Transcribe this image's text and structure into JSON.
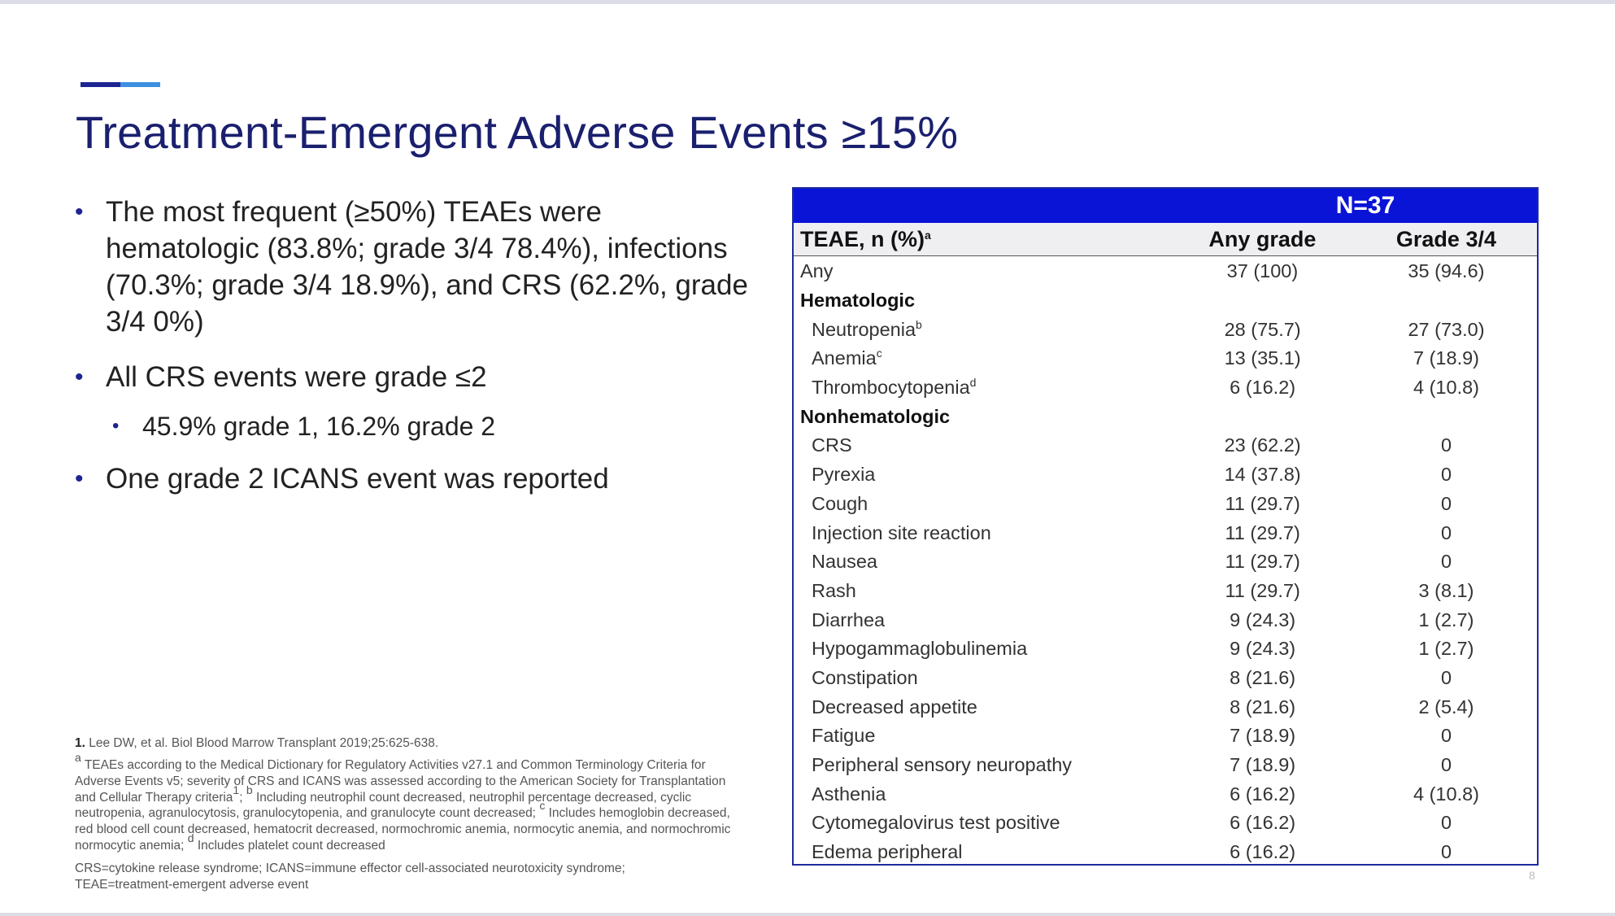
{
  "slide": {
    "title": "Treatment-Emergent Adverse Events ≥15%",
    "page_number": "8",
    "accent_colors": [
      "#1c2591",
      "#3d8fe0"
    ]
  },
  "bullets": {
    "b1": "The most frequent (≥50%) TEAEs were hematologic (83.8%; grade 3/4 78.4%), infections (70.3%; grade 3/4 18.9%), and CRS (62.2%, grade 3/4 0%)",
    "b2": "All CRS events were grade ≤2",
    "b2_sub": "45.9% grade 1, 16.2% grade 2",
    "b3": "One grade 2 ICANS event was reported"
  },
  "footnotes": {
    "ref_number": "1.",
    "ref_text": "Lee DW, et al. Biol Blood Marrow Transplant 2019;25:625-638.",
    "note_a_marker": "a",
    "note_a": "TEAEs according to the Medical Dictionary for Regulatory Activities v27.1 and Common Terminology Criteria for Adverse Events v5; severity of CRS and ICANS was assessed according to the American Society for Transplantation and Cellular Therapy criteria",
    "note_a_ref": "1",
    "note_b_marker": "b",
    "note_b": "Including neutrophil count decreased, neutrophil percentage decreased, cyclic neutropenia, agranulocytosis, granulocytopenia, and granulocyte count decreased;",
    "note_c_marker": "c",
    "note_c": "Includes hemoglobin decreased, red blood cell count decreased, hematocrit decreased, normochromic anemia, normocytic anemia, and normochromic normocytic anemia;",
    "note_d_marker": "d",
    "note_d": "Includes platelet count decreased",
    "abbreviations": "CRS=cytokine release syndrome; ICANS=immune effector cell-associated neurotoxicity syndrome; TEAE=treatment-emergent adverse event"
  },
  "table": {
    "n_label": "N=37",
    "header": {
      "name": "TEAE, n (%)",
      "name_sup": "a",
      "any": "Any grade",
      "g34": "Grade 3/4"
    },
    "rows": [
      {
        "name": "Any",
        "any": "37 (100)",
        "g34": "35 (94.6)"
      },
      {
        "name": "Hematologic"
      },
      {
        "name": "Neutropenia",
        "sup": "b",
        "any": "28 (75.7)",
        "g34": "27 (73.0)"
      },
      {
        "name": "Anemia",
        "sup": "c",
        "any": "13 (35.1)",
        "g34": "7 (18.9)"
      },
      {
        "name": "Thrombocytopenia",
        "sup": "d",
        "any": "6 (16.2)",
        "g34": "4 (10.8)"
      },
      {
        "name": "Nonhematologic"
      },
      {
        "name": "CRS",
        "any": "23 (62.2)",
        "g34": "0"
      },
      {
        "name": "Pyrexia",
        "any": "14 (37.8)",
        "g34": "0"
      },
      {
        "name": "Cough",
        "any": "11 (29.7)",
        "g34": "0"
      },
      {
        "name": "Injection site reaction",
        "any": "11 (29.7)",
        "g34": "0"
      },
      {
        "name": "Nausea",
        "any": "11 (29.7)",
        "g34": "0"
      },
      {
        "name": "Rash",
        "any": "11 (29.7)",
        "g34": "3 (8.1)"
      },
      {
        "name": "Diarrhea",
        "any": "9 (24.3)",
        "g34": "1 (2.7)"
      },
      {
        "name": "Hypogammaglobulinemia",
        "any": "9 (24.3)",
        "g34": "1 (2.7)"
      },
      {
        "name": "Constipation",
        "any": "8 (21.6)",
        "g34": "0"
      },
      {
        "name": "Decreased appetite",
        "any": "8 (21.6)",
        "g34": "2 (5.4)"
      },
      {
        "name": "Fatigue",
        "any": "7 (18.9)",
        "g34": "0"
      },
      {
        "name": "Peripheral sensory neuropathy",
        "any": "7 (18.9)",
        "g34": "0"
      },
      {
        "name": "Asthenia",
        "any": "6 (16.2)",
        "g34": "4 (10.8)"
      },
      {
        "name": "Cytomegalovirus test positive",
        "any": "6 (16.2)",
        "g34": "0"
      },
      {
        "name": "Edema peripheral",
        "any": "6 (16.2)",
        "g34": "0"
      }
    ]
  }
}
